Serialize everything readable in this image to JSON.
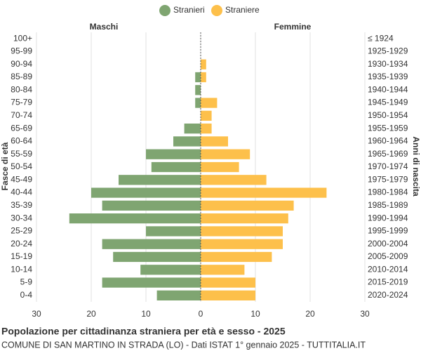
{
  "chart_data": {
    "type": "pyramid",
    "title": "Popolazione per cittadinanza straniera per età e sesso - 2025",
    "subtitle": "COMUNE DI SAN MARTINO IN STRADA (LO) - Dati ISTAT 1° gennaio 2025 - TUTTITALIA.IT",
    "left_label": "Maschi",
    "right_label": "Femmine",
    "y_axis_label": "Fasce di età",
    "y2_axis_label": "Anni di nascita",
    "categories": [
      "100+",
      "95-99",
      "90-94",
      "85-89",
      "80-84",
      "75-79",
      "70-74",
      "65-69",
      "60-64",
      "55-59",
      "50-54",
      "45-49",
      "40-44",
      "35-39",
      "30-34",
      "25-29",
      "20-24",
      "15-19",
      "10-14",
      "5-9",
      "0-4"
    ],
    "birth_years": [
      "≤ 1924",
      "1925-1929",
      "1930-1934",
      "1935-1939",
      "1940-1944",
      "1945-1949",
      "1950-1954",
      "1955-1959",
      "1960-1964",
      "1965-1969",
      "1970-1974",
      "1975-1979",
      "1980-1984",
      "1985-1989",
      "1990-1994",
      "1995-1999",
      "2000-2004",
      "2005-2009",
      "2010-2014",
      "2015-2019",
      "2020-2024"
    ],
    "series": [
      {
        "name": "Stranieri",
        "color": "#7fa571",
        "values": [
          0,
          0,
          0,
          -1,
          -1,
          -1,
          0,
          -3,
          -5,
          -10,
          -9,
          -15,
          -20,
          -18,
          -24,
          -10,
          -18,
          -16,
          -11,
          -18,
          -8
        ]
      },
      {
        "name": "Straniere",
        "color": "#fdc04b",
        "values": [
          0,
          0,
          1,
          1,
          0,
          3,
          2,
          2,
          5,
          9,
          7,
          12,
          23,
          17,
          16,
          15,
          15,
          13,
          8,
          10,
          10
        ]
      }
    ],
    "xlim": [
      -30,
      30
    ],
    "xticks": [
      {
        "value": -30,
        "label": "30"
      },
      {
        "value": -20,
        "label": "20"
      },
      {
        "value": -10,
        "label": "10"
      },
      0,
      10,
      20,
      30
    ],
    "grid": true
  }
}
